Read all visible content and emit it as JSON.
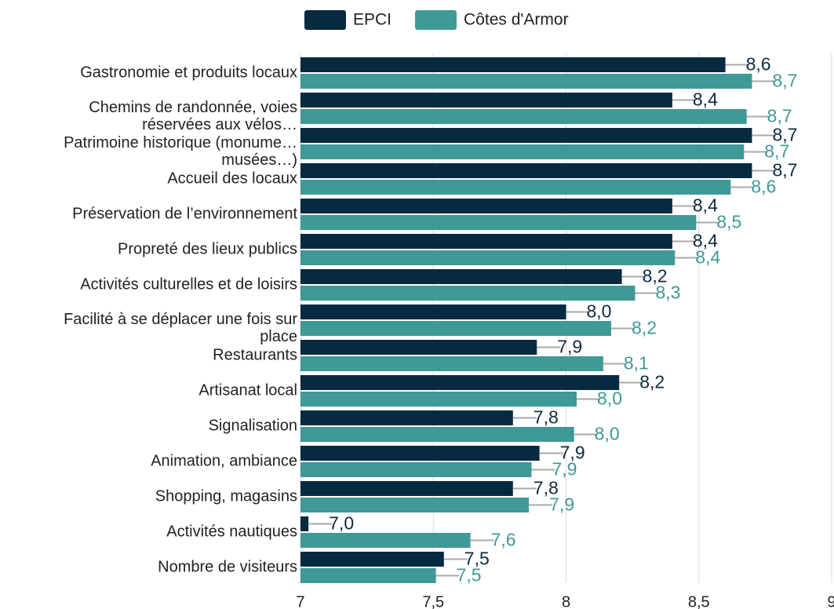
{
  "chart_data": {
    "type": "hbar",
    "categories": [
      "Gastronomie et produits locaux",
      "Chemins de randonnée, voies réservées aux vélos…",
      "Patrimoine historique (monume… musées…)",
      "Accueil des locaux",
      "Préservation de l’environnement",
      "Propreté des lieux publics",
      "Activités culturelles et de loisirs",
      "Facilité à se déplacer une fois sur place",
      "Restaurants",
      "Artisanat local",
      "Signalisation",
      "Animation, ambiance",
      "Shopping, magasins",
      "Activités nautiques",
      "Nombre de visiteurs"
    ],
    "series": [
      {
        "name": "EPCI",
        "color": "#062a40",
        "values": [
          8.6,
          8.4,
          8.7,
          8.7,
          8.4,
          8.4,
          8.21,
          8.0,
          7.89,
          8.2,
          7.8,
          7.9,
          7.8,
          7.03,
          7.54
        ],
        "value_labels": [
          "8,6",
          "8,4",
          "8,7",
          "8,7",
          "8,4",
          "8,4",
          "8,2",
          "8,0",
          "7,9",
          "8,2",
          "7,8",
          "7,9",
          "7,8",
          "7,0",
          "7,5"
        ]
      },
      {
        "name": "Côtes d'Armor",
        "color": "#3f9996",
        "values": [
          8.7,
          8.68,
          8.67,
          8.62,
          8.49,
          8.41,
          8.26,
          8.17,
          8.14,
          8.04,
          8.03,
          7.87,
          7.86,
          7.64,
          7.51
        ],
        "value_labels": [
          "8,7",
          "8,7",
          "8,7",
          "8,6",
          "8,5",
          "8,4",
          "8,3",
          "8,2",
          "8,1",
          "8,0",
          "8,0",
          "7,9",
          "7,9",
          "7,6",
          "7,5"
        ]
      }
    ],
    "xlim": [
      7,
      9
    ],
    "xticks": [
      7,
      {
        "value": 7.5,
        "label": "7,5"
      },
      8,
      {
        "value": 8.5,
        "label": "8,5"
      },
      9
    ],
    "grid": true,
    "legend": "top"
  }
}
